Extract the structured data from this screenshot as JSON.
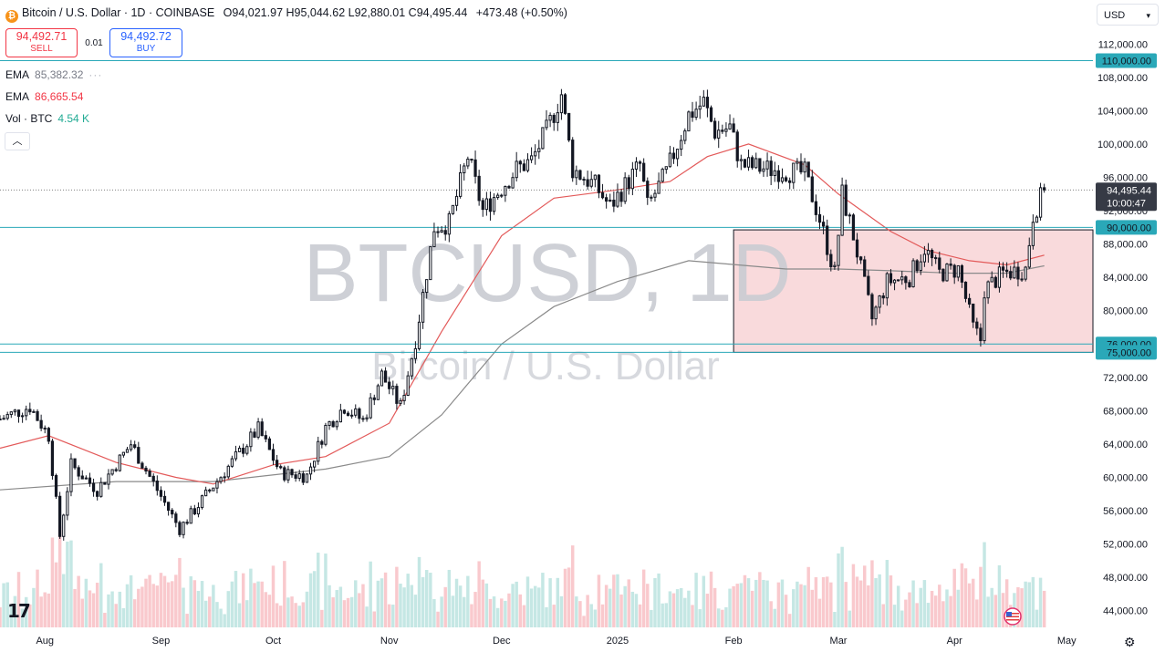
{
  "header": {
    "symbol_title": "Bitcoin / U.S. Dollar",
    "interval": "1D",
    "exchange": "COINBASE",
    "open_label": "O",
    "open": "94,021.97",
    "high_label": "H",
    "high": "95,044.62",
    "low_label": "L",
    "low": "92,880.01",
    "close_label": "C",
    "close": "94,495.44",
    "change": "+473.48 (+0.50%)"
  },
  "trade": {
    "sell_price": "94,492.71",
    "sell_label": "SELL",
    "spread": "0.01",
    "buy_price": "94,492.72",
    "buy_label": "BUY"
  },
  "indicators": [
    {
      "label": "EMA",
      "value": "85,382.32",
      "color": "#787b86"
    },
    {
      "label": "EMA",
      "value": "86,665.54",
      "color": "#f23645"
    },
    {
      "label": "Vol · BTC",
      "value": "4.54 K",
      "color": "#22ab94"
    }
  ],
  "currency_select": "USD",
  "collapse_icon": "chevron-up-icon",
  "logo": "TV",
  "watermark": {
    "symbol": "BTCUSD, 1D",
    "name": "Bitcoin / U.S. Dollar"
  },
  "colors": {
    "up": "#131722",
    "down": "#131722",
    "ema_fast": "#e35a5a",
    "ema_slow": "#8a8a8a",
    "box": "#f8d3d6",
    "line": "#2aa8b8",
    "vol_up": "#b2dfdb",
    "vol_down": "#f7b7bc"
  },
  "chart_data": {
    "type": "candlestick",
    "title": "Bitcoin / U.S. Dollar",
    "y_axis": {
      "min": 42000,
      "max": 114000,
      "ticks": [
        112000,
        108000,
        104000,
        100000,
        96000,
        92000,
        88000,
        84000,
        80000,
        76000,
        72000,
        68000,
        64000,
        60000,
        56000,
        52000,
        48000,
        44000
      ]
    },
    "x_axis": {
      "start": "2024-07-20",
      "end": "2025-05-08",
      "labels": [
        {
          "label": "Aug",
          "date": "2024-08-01"
        },
        {
          "label": "Sep",
          "date": "2024-09-01"
        },
        {
          "label": "Oct",
          "date": "2024-10-01"
        },
        {
          "label": "Nov",
          "date": "2024-11-01"
        },
        {
          "label": "Dec",
          "date": "2024-12-01"
        },
        {
          "label": "2025",
          "date": "2025-01-01"
        },
        {
          "label": "Feb",
          "date": "2025-02-01"
        },
        {
          "label": "Mar",
          "date": "2025-03-01"
        },
        {
          "label": "Apr",
          "date": "2025-04-01"
        },
        {
          "label": "May",
          "date": "2025-05-01"
        }
      ]
    },
    "price_path": [
      [
        "2024-07-20",
        67000
      ],
      [
        "2024-07-28",
        68500
      ],
      [
        "2024-08-02",
        65000
      ],
      [
        "2024-08-05",
        53000
      ],
      [
        "2024-08-08",
        61500
      ],
      [
        "2024-08-15",
        58500
      ],
      [
        "2024-08-24",
        64000
      ],
      [
        "2024-09-06",
        53800
      ],
      [
        "2024-09-15",
        59000
      ],
      [
        "2024-09-27",
        65800
      ],
      [
        "2024-10-03",
        60500
      ],
      [
        "2024-10-10",
        60200
      ],
      [
        "2024-10-15",
        66000
      ],
      [
        "2024-10-20",
        68500
      ],
      [
        "2024-10-25",
        66800
      ],
      [
        "2024-10-30",
        72300
      ],
      [
        "2024-11-04",
        68500
      ],
      [
        "2024-11-08",
        76500
      ],
      [
        "2024-11-13",
        90000
      ],
      [
        "2024-11-17",
        90500
      ],
      [
        "2024-11-22",
        98500
      ],
      [
        "2024-11-26",
        92000
      ],
      [
        "2024-12-05",
        97000
      ],
      [
        "2024-12-09",
        98000
      ],
      [
        "2024-12-13",
        101500
      ],
      [
        "2024-12-17",
        106000
      ],
      [
        "2024-12-20",
        97000
      ],
      [
        "2024-12-26",
        95000
      ],
      [
        "2024-12-30",
        92500
      ],
      [
        "2025-01-07",
        97500
      ],
      [
        "2025-01-09",
        92500
      ],
      [
        "2025-01-14",
        96500
      ],
      [
        "2025-01-20",
        103500
      ],
      [
        "2025-01-24",
        105000
      ],
      [
        "2025-01-27",
        101500
      ],
      [
        "2025-01-31",
        102000
      ],
      [
        "2025-02-03",
        97500
      ],
      [
        "2025-02-10",
        97000
      ],
      [
        "2025-02-20",
        96500
      ],
      [
        "2025-02-24",
        91000
      ],
      [
        "2025-02-28",
        84500
      ],
      [
        "2025-03-02",
        94000
      ],
      [
        "2025-03-05",
        89000
      ],
      [
        "2025-03-10",
        79000
      ],
      [
        "2025-03-14",
        83500
      ],
      [
        "2025-03-20",
        84000
      ],
      [
        "2025-03-24",
        87500
      ],
      [
        "2025-03-28",
        84500
      ],
      [
        "2025-04-02",
        85000
      ],
      [
        "2025-04-06",
        78000
      ],
      [
        "2025-04-08",
        76500
      ],
      [
        "2025-04-09",
        82500
      ],
      [
        "2025-04-14",
        84500
      ],
      [
        "2025-04-20",
        85000
      ],
      [
        "2025-04-22",
        91500
      ],
      [
        "2025-04-24",
        93500
      ],
      [
        "2025-04-25",
        94495
      ]
    ],
    "series": [
      {
        "name": "EMA",
        "value": 85382.32,
        "path": [
          [
            "2024-07-20",
            58500
          ],
          [
            "2024-08-20",
            59500
          ],
          [
            "2024-09-15",
            59500
          ],
          [
            "2024-10-15",
            61000
          ],
          [
            "2024-11-01",
            62500
          ],
          [
            "2024-11-15",
            67500
          ],
          [
            "2024-12-01",
            76000
          ],
          [
            "2024-12-15",
            80500
          ],
          [
            "2025-01-01",
            83500
          ],
          [
            "2025-01-20",
            86000
          ],
          [
            "2025-02-15",
            85000
          ],
          [
            "2025-03-01",
            85000
          ],
          [
            "2025-03-15",
            84800
          ],
          [
            "2025-04-01",
            84500
          ],
          [
            "2025-04-15",
            84500
          ],
          [
            "2025-04-25",
            85382
          ]
        ]
      },
      {
        "name": "EMA",
        "value": 86665.54,
        "path": [
          [
            "2024-07-20",
            63500
          ],
          [
            "2024-08-02",
            65000
          ],
          [
            "2024-08-20",
            61800
          ],
          [
            "2024-09-05",
            60000
          ],
          [
            "2024-09-15",
            59200
          ],
          [
            "2024-10-01",
            61500
          ],
          [
            "2024-10-15",
            62500
          ],
          [
            "2024-11-01",
            66500
          ],
          [
            "2024-11-15",
            77500
          ],
          [
            "2024-12-01",
            89000
          ],
          [
            "2024-12-15",
            93500
          ],
          [
            "2025-01-01",
            94500
          ],
          [
            "2025-01-15",
            95500
          ],
          [
            "2025-01-25",
            98500
          ],
          [
            "2025-02-05",
            100000
          ],
          [
            "2025-02-20",
            97500
          ],
          [
            "2025-03-01",
            94000
          ],
          [
            "2025-03-15",
            89500
          ],
          [
            "2025-03-25",
            87200
          ],
          [
            "2025-04-05",
            86000
          ],
          [
            "2025-04-15",
            85500
          ],
          [
            "2025-04-25",
            86665
          ]
        ]
      }
    ],
    "levels": [
      110000,
      90000,
      76000,
      75000
    ],
    "range_box": {
      "start": "2025-02-01",
      "end": "2025-05-08",
      "high": 89700,
      "low": 75000
    },
    "last_price": {
      "value": "94,495.44",
      "countdown": "10:00:47"
    },
    "volume": {
      "label": "Vol · BTC",
      "last": "4.54 K"
    }
  }
}
